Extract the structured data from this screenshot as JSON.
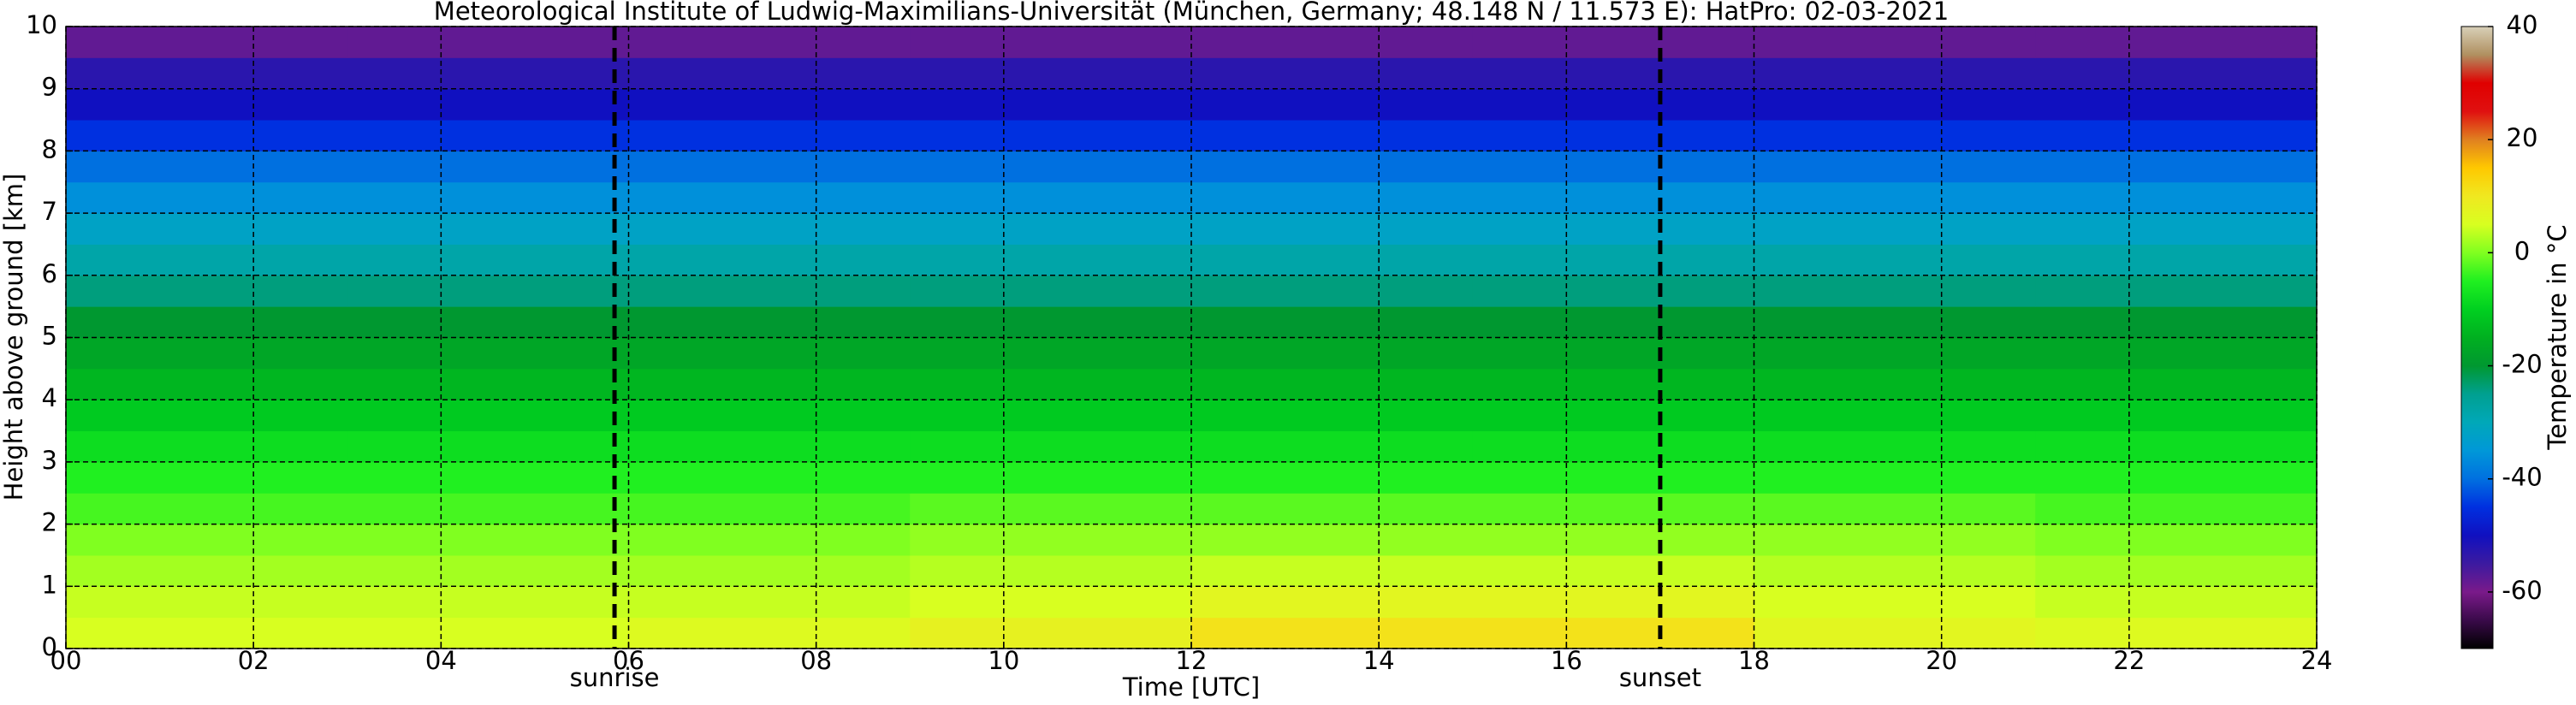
{
  "chart_data": {
    "type": "heatmap",
    "title": "Meteorological Institute of Ludwig-Maximilians-Universität (München, Germany; 48.148 N / 11.573 E):    HatPro: 02-03-2021",
    "x_label": "Time [UTC]",
    "y_label": "Height above ground [km]",
    "colorbar_label": "Temperature in °C",
    "x": [
      0,
      3,
      6,
      9,
      12,
      15,
      18,
      21,
      24
    ],
    "y": [
      0,
      0.5,
      1,
      1.5,
      2,
      2.5,
      3,
      3.5,
      4,
      4.5,
      5,
      5.5,
      6,
      6.5,
      7,
      7.5,
      8,
      8.5,
      9,
      9.5,
      10
    ],
    "z": [
      [
        5,
        5,
        6,
        8,
        11,
        11,
        7,
        6
      ],
      [
        4,
        4,
        4,
        5,
        7,
        7,
        5,
        4
      ],
      [
        2,
        2,
        2,
        3,
        4,
        4,
        3,
        2
      ],
      [
        0,
        0,
        0,
        1,
        1,
        1,
        1,
        0
      ],
      [
        -3,
        -3,
        -3,
        -2,
        -2,
        -2,
        -2,
        -3
      ],
      [
        -5,
        -5,
        -5,
        -5,
        -5,
        -5,
        -5,
        -5
      ],
      [
        -8,
        -8,
        -8,
        -8,
        -8,
        -8,
        -8,
        -8
      ],
      [
        -11,
        -11,
        -11,
        -11,
        -11,
        -11,
        -11,
        -11
      ],
      [
        -14,
        -14,
        -14,
        -14,
        -14,
        -14,
        -14,
        -14
      ],
      [
        -17,
        -17,
        -17,
        -17,
        -17,
        -17,
        -17,
        -17
      ],
      [
        -20,
        -20,
        -20,
        -20,
        -20,
        -20,
        -20,
        -20
      ],
      [
        -24,
        -24,
        -24,
        -24,
        -24,
        -24,
        -24,
        -24
      ],
      [
        -28,
        -28,
        -28,
        -28,
        -28,
        -28,
        -28,
        -28
      ],
      [
        -32,
        -32,
        -32,
        -32,
        -32,
        -32,
        -32,
        -32
      ],
      [
        -36,
        -36,
        -36,
        -36,
        -36,
        -36,
        -36,
        -36
      ],
      [
        -40,
        -40,
        -40,
        -40,
        -40,
        -40,
        -40,
        -40
      ],
      [
        -45,
        -45,
        -45,
        -45,
        -45,
        -45,
        -45,
        -45
      ],
      [
        -50,
        -50,
        -50,
        -50,
        -50,
        -50,
        -50,
        -50
      ],
      [
        -53,
        -53,
        -53,
        -53,
        -53,
        -53,
        -53,
        -53
      ],
      [
        -58,
        -58,
        -58,
        -58,
        -58,
        -58,
        -58,
        -58
      ]
    ],
    "xlim": [
      0,
      24
    ],
    "ylim": [
      0,
      10
    ],
    "xticks": [
      {
        "value": 0,
        "label": "00"
      },
      {
        "value": 2,
        "label": "02"
      },
      {
        "value": 4,
        "label": "04"
      },
      {
        "value": 6,
        "label": "06"
      },
      {
        "value": 8,
        "label": "08"
      },
      10,
      12,
      14,
      16,
      18,
      20,
      22,
      24
    ],
    "yticks": [
      0,
      1,
      2,
      3,
      4,
      5,
      6,
      7,
      8,
      9,
      10
    ],
    "clim": [
      -70,
      40
    ],
    "cticks": [
      40,
      20,
      0,
      -20,
      -40,
      -60
    ],
    "colorscale": [
      "#000000",
      "#3a0a4a",
      "#7a1a8a",
      "#3c1aa0",
      "#1010c0",
      "#0030e0",
      "#0070e0",
      "#0098d8",
      "#00a8b8",
      "#00a090",
      "#009830",
      "#00b020",
      "#00d020",
      "#20f020",
      "#80ff20",
      "#d8ff20",
      "#f0e820",
      "#ffc800",
      "#e08020",
      "#e01010",
      "#e00000",
      "#b09060",
      "#d8d0b8"
    ],
    "grid": true,
    "annotations": [
      {
        "x": 5.85,
        "label": "sunrise"
      },
      {
        "x": 17.0,
        "label": "sunset"
      }
    ]
  }
}
